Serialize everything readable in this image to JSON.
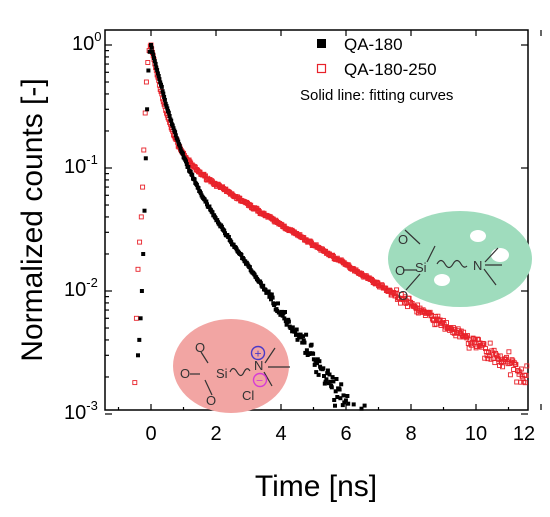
{
  "chart_data": {
    "type": "scatter",
    "title": "",
    "xlabel": "Time [ns]",
    "ylabel": "Normalized counts [-]",
    "xlim": [
      -1,
      12
    ],
    "ylim": [
      0.001,
      1.3
    ],
    "yscale": "log",
    "grid": false,
    "legend_position": "top-right",
    "x_ticks": [
      "0",
      "2",
      "4",
      "6",
      "8",
      "10",
      "12"
    ],
    "y_ticks": [
      {
        "base": "10",
        "exp": "0"
      },
      {
        "base": "10",
        "exp": "-1"
      },
      {
        "base": "10",
        "exp": "-2"
      },
      {
        "base": "10",
        "exp": "-3"
      }
    ],
    "legend_note": "Solid line: fitting curves",
    "series": [
      {
        "name": "QA-180",
        "marker": "filled-square",
        "color": "#000000",
        "rise": {
          "x": [
            -0.4,
            -0.36,
            -0.32,
            -0.28,
            -0.24,
            -0.2,
            -0.16,
            -0.12,
            -0.08,
            -0.04,
            0.0
          ],
          "y": [
            0.003,
            0.004,
            0.006,
            0.01,
            0.02,
            0.045,
            0.12,
            0.3,
            0.62,
            0.88,
            1.0
          ]
        },
        "decay": {
          "fast_amp": 0.8,
          "fast_tau_ns": 0.33,
          "slow_amp": 0.2,
          "slow_tau_ns": 1.18,
          "x_end": 7.0
        }
      },
      {
        "name": "QA-180-250",
        "marker": "open-square",
        "color": "#e8222a",
        "rise": {
          "x": [
            -0.5,
            -0.45,
            -0.4,
            -0.35,
            -0.3,
            -0.26,
            -0.22,
            -0.18,
            -0.14,
            -0.1,
            -0.06,
            -0.02,
            0.0
          ],
          "y": [
            0.0018,
            0.006,
            0.015,
            0.025,
            0.04,
            0.07,
            0.14,
            0.28,
            0.5,
            0.72,
            0.9,
            0.98,
            1.0
          ]
        },
        "decay": {
          "fast_amp": 0.84,
          "fast_tau_ns": 0.28,
          "slow_amp": 0.154,
          "slow_tau_ns": 2.68,
          "x_end": 12.0
        }
      }
    ]
  },
  "chem_labels": {
    "O": "O",
    "Si": "Si",
    "N": "N",
    "Cl": "Cl",
    "plus": "+",
    "minus": "−"
  },
  "colors": {
    "red_blob": "#f2a5a3",
    "green_blob": "#9fdcbd",
    "plus": "#4a39c7",
    "minus": "#d63bd6"
  }
}
